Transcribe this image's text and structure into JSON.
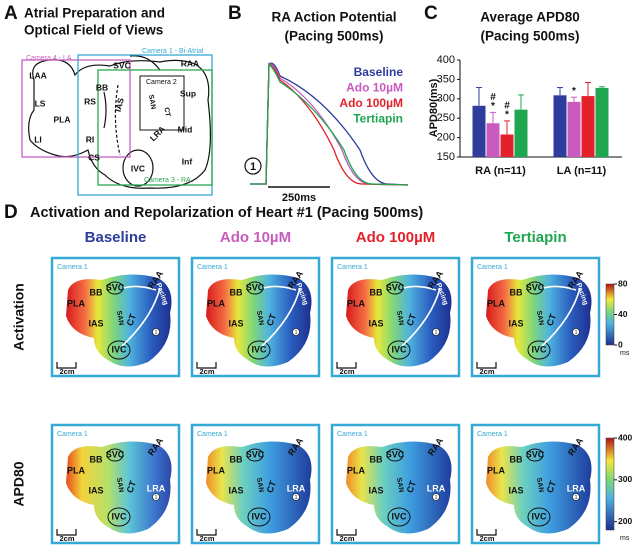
{
  "panel_letters": [
    "A",
    "B",
    "C",
    "D"
  ],
  "panel_a": {
    "title": "Atrial Preparation and",
    "subtitle": "Optical Field of Views",
    "cameras": [
      "Camera 4 - LA",
      "Camera 1 - Bi-Atrial",
      "Camera 2",
      "Camera 3 - RA"
    ],
    "labels": [
      "LAA",
      "LS",
      "PLA",
      "LI",
      "BB",
      "RS",
      "RI",
      "IAS",
      "CS",
      "SVC",
      "RAA",
      "SAN",
      "CT",
      "Sup",
      "Mid",
      "Inf",
      "LRA",
      "IVC"
    ]
  },
  "panel_b": {
    "title": "RA Action Potential",
    "subtitle": "(Pacing 500ms)",
    "scale_bar": "250ms",
    "marker": "1"
  },
  "chart_data": {
    "type": "bar",
    "title": "Average APD80",
    "subtitle": "(Pacing 500ms)",
    "ylabel": "APD80(ms)",
    "categories": [
      "RA (n=11)",
      "LA (n=11)"
    ],
    "series": [
      {
        "name": "Baseline",
        "color": "#2e3d9c",
        "values": [
          282,
          309
        ],
        "errors": [
          47,
          20
        ]
      },
      {
        "name": "Ado 10µM",
        "color": "#c95bbf",
        "values": [
          237,
          292
        ],
        "errors": [
          28,
          12
        ],
        "annotations": [
          [
            "#",
            "*"
          ],
          [
            "*"
          ]
        ]
      },
      {
        "name": "Ado 100µM",
        "color": "#e3212b",
        "values": [
          208,
          307
        ],
        "errors": [
          35,
          35
        ],
        "annotations": [
          [
            "#",
            "*"
          ],
          []
        ]
      },
      {
        "name": "Tertiapin",
        "color": "#1ea650",
        "values": [
          272,
          328
        ],
        "errors": [
          38,
          3
        ]
      }
    ],
    "ylim": [
      150,
      400
    ],
    "yticks": [
      150,
      200,
      250,
      300,
      350,
      400
    ]
  },
  "panel_d": {
    "title": "Activation and Repolarization of Heart #1 (Pacing 500ms)",
    "row_labels": [
      "Activation",
      "APD80"
    ],
    "camera": "Camera 1",
    "scale_bar": "2cm",
    "marker": "1",
    "map_labels": [
      "PLA",
      "BB",
      "SVC",
      "IAS",
      "SAN",
      "CT",
      "IVC",
      "RAA",
      "Pacing",
      "LRA"
    ],
    "colorbars": [
      {
        "ylim": [
          0,
          80
        ],
        "yticks": [
          0,
          40,
          80
        ],
        "unit": "ms"
      },
      {
        "ylim": [
          180,
          400
        ],
        "yticks": [
          200,
          300,
          400
        ],
        "unit": "ms"
      }
    ]
  }
}
